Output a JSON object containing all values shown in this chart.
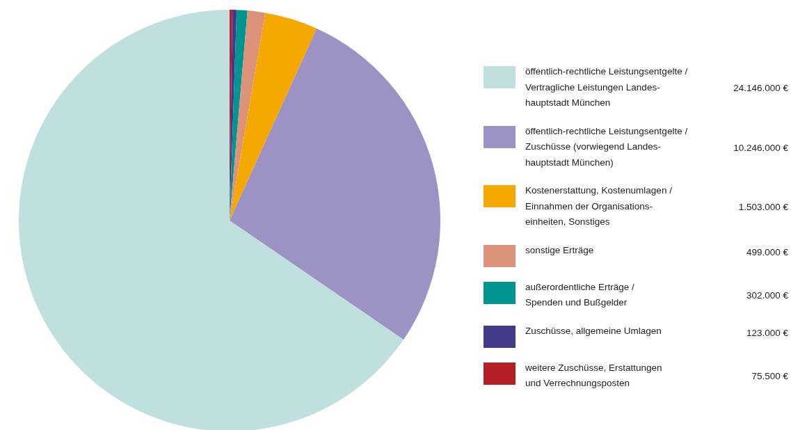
{
  "chart_data": {
    "type": "pie",
    "categories": [
      "öffentlich-rechtliche Leistungsentgelte /\nVertragliche Leistungen Landes-\nhauptstadt München",
      "öffentlich-rechtliche Leistungsentgelte /\nZuschüsse (vorwiegend Landes-\nhauptstadt München)",
      "Kostenerstattung, Kostenumlagen /\nEinnahmen der Organisations-\neinheiten, Sonstiges",
      "sonstige Erträge",
      "außerordentliche Erträge /\nSpenden und Bußgelder",
      "Zuschüsse, allgemeine Umlagen",
      "weitere Zuschüsse, Erstattungen\nund Verrechnungsposten"
    ],
    "values": [
      24146000,
      10246000,
      1503000,
      499000,
      302000,
      123000,
      75500
    ],
    "value_labels": [
      "24.146.000 €",
      "10.246.000 €",
      "1.503.000 €",
      "499.000 €",
      "302.000 €",
      "123.000 €",
      "75.500 €"
    ],
    "colors": [
      "#c0e0df",
      "#9d92c4",
      "#f5a800",
      "#dc937a",
      "#00968f",
      "#433a8a",
      "#b51f24"
    ],
    "legend": "right"
  }
}
